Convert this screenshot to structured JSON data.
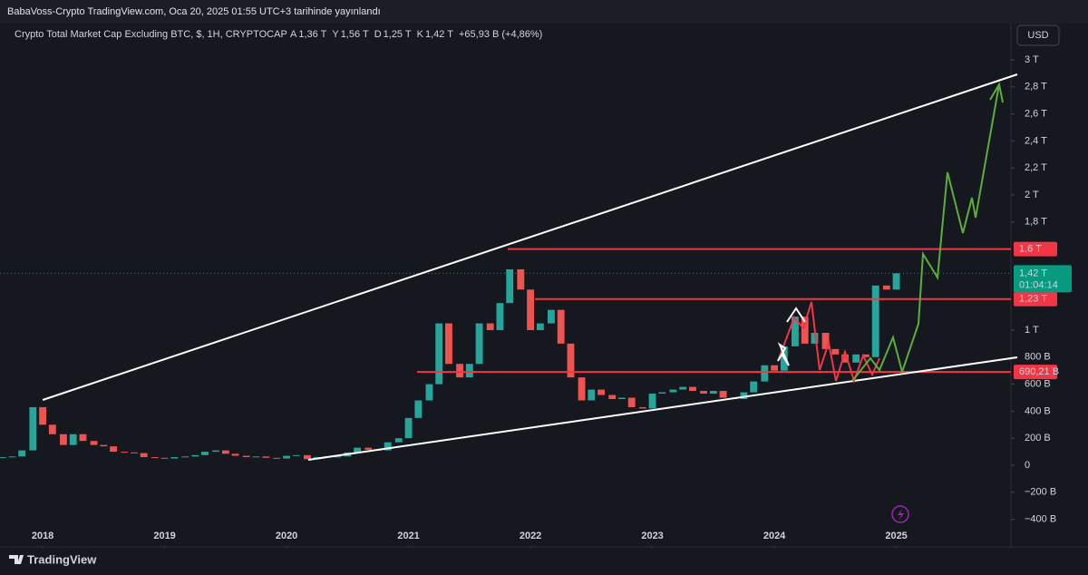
{
  "header": {
    "publisher": "BabaVoss-Crypto TradingView.com, Oca 20, 2025 01:55 UTC+3 tarihinde yayınlandı"
  },
  "chart_data": {
    "type": "candlestick",
    "title": "Crypto Total Market Cap Excluding BTC, $, 1H, CRYPTOCAP",
    "ohlc_legend": [
      {
        "key": "A",
        "label": "1,36 T"
      },
      {
        "key": "Y",
        "label": "1,56 T"
      },
      {
        "key": "D",
        "label": "1,25 T"
      },
      {
        "key": "K",
        "label": "1,42 T"
      }
    ],
    "change": "+65,93 B (+4,86%)",
    "currency": "USD",
    "up_color": "#26a69a",
    "down_color": "#ef5350",
    "x": [
      2017.67,
      2017.75,
      2017.83,
      2017.92,
      2018.0,
      2018.08,
      2018.17,
      2018.25,
      2018.33,
      2018.42,
      2018.5,
      2018.58,
      2018.67,
      2018.75,
      2018.83,
      2018.92,
      2019.0,
      2019.08,
      2019.17,
      2019.25,
      2019.33,
      2019.42,
      2019.5,
      2019.58,
      2019.67,
      2019.75,
      2019.83,
      2019.92,
      2020.0,
      2020.08,
      2020.17,
      2020.25,
      2020.33,
      2020.42,
      2020.5,
      2020.58,
      2020.67,
      2020.75,
      2020.83,
      2020.92,
      2021.0,
      2021.08,
      2021.17,
      2021.25,
      2021.33,
      2021.42,
      2021.5,
      2021.58,
      2021.67,
      2021.75,
      2021.83,
      2021.92,
      2022.0,
      2022.08,
      2022.17,
      2022.25,
      2022.33,
      2022.42,
      2022.5,
      2022.58,
      2022.67,
      2022.75,
      2022.83,
      2022.92,
      2023.0,
      2023.08,
      2023.17,
      2023.25,
      2023.33,
      2023.42,
      2023.5,
      2023.58,
      2023.67,
      2023.75,
      2023.83,
      2023.92,
      2024.0,
      2024.08,
      2024.17,
      2024.25,
      2024.33,
      2024.42,
      2024.5,
      2024.58,
      2024.67,
      2024.75,
      2024.83,
      2024.92,
      2025.0
    ],
    "open": [
      55,
      60,
      65,
      110,
      430,
      300,
      230,
      150,
      230,
      180,
      150,
      140,
      100,
      95,
      90,
      60,
      55,
      50,
      60,
      65,
      75,
      100,
      110,
      85,
      70,
      60,
      65,
      55,
      50,
      70,
      75,
      45,
      60,
      65,
      65,
      95,
      130,
      115,
      110,
      170,
      200,
      350,
      480,
      600,
      1050,
      750,
      650,
      750,
      1050,
      1000,
      1200,
      1450,
      1300,
      1000,
      1050,
      1150,
      900,
      650,
      480,
      560,
      520,
      490,
      500,
      430,
      420,
      530,
      540,
      560,
      580,
      550,
      530,
      550,
      500,
      490,
      540,
      620,
      740,
      700,
      880,
      1100,
      900,
      980,
      860,
      820,
      760,
      820,
      800,
      1330,
      1300
    ],
    "close": [
      60,
      65,
      110,
      430,
      300,
      230,
      150,
      230,
      180,
      150,
      140,
      100,
      95,
      90,
      60,
      55,
      50,
      60,
      65,
      75,
      100,
      110,
      85,
      70,
      60,
      65,
      55,
      50,
      70,
      75,
      45,
      60,
      65,
      65,
      95,
      130,
      115,
      110,
      170,
      200,
      350,
      480,
      600,
      1050,
      750,
      650,
      750,
      1050,
      1000,
      1200,
      1450,
      1300,
      1000,
      1050,
      1150,
      900,
      650,
      480,
      560,
      520,
      490,
      500,
      430,
      420,
      530,
      540,
      560,
      580,
      550,
      530,
      550,
      500,
      490,
      540,
      620,
      740,
      700,
      880,
      1100,
      900,
      980,
      860,
      820,
      760,
      820,
      800,
      1330,
      1300,
      1420
    ],
    "xlim": [
      2017.65,
      2025.94
    ],
    "xticks": [
      2018,
      2019,
      2020,
      2021,
      2022,
      2023,
      2024,
      2025
    ],
    "ylim": [
      -500,
      3150
    ],
    "yticks": [
      {
        "value": 3000,
        "label": "3 T"
      },
      {
        "value": 2800,
        "label": "2,8 T"
      },
      {
        "value": 2600,
        "label": "2,6 T"
      },
      {
        "value": 2400,
        "label": "2,4 T"
      },
      {
        "value": 2200,
        "label": "2,2 T"
      },
      {
        "value": 2000,
        "label": "2 T"
      },
      {
        "value": 1800,
        "label": "1,8 T"
      },
      {
        "value": 1000,
        "label": "1 T"
      },
      {
        "value": 800,
        "label": "800 B"
      },
      {
        "value": 600,
        "label": "600 B"
      },
      {
        "value": 400,
        "label": "400 B"
      },
      {
        "value": 200,
        "label": "200 B"
      },
      0,
      {
        "value": -200,
        "label": "−200 B"
      },
      {
        "value": -400,
        "label": "−400 B"
      }
    ],
    "levels": [
      {
        "value": 1600,
        "label": "1,6 T",
        "color": "#f23645"
      },
      {
        "value": 1230,
        "label": "1,23 T",
        "color": "#f23645"
      },
      {
        "value": 690.21,
        "label": "690,21 B",
        "color": "#f23645"
      }
    ],
    "last_price": {
      "value": 1420,
      "label": "1,42 T",
      "countdown": "01:04:14",
      "color": "#089981"
    }
  },
  "footer": {
    "brand": "TradingView"
  }
}
